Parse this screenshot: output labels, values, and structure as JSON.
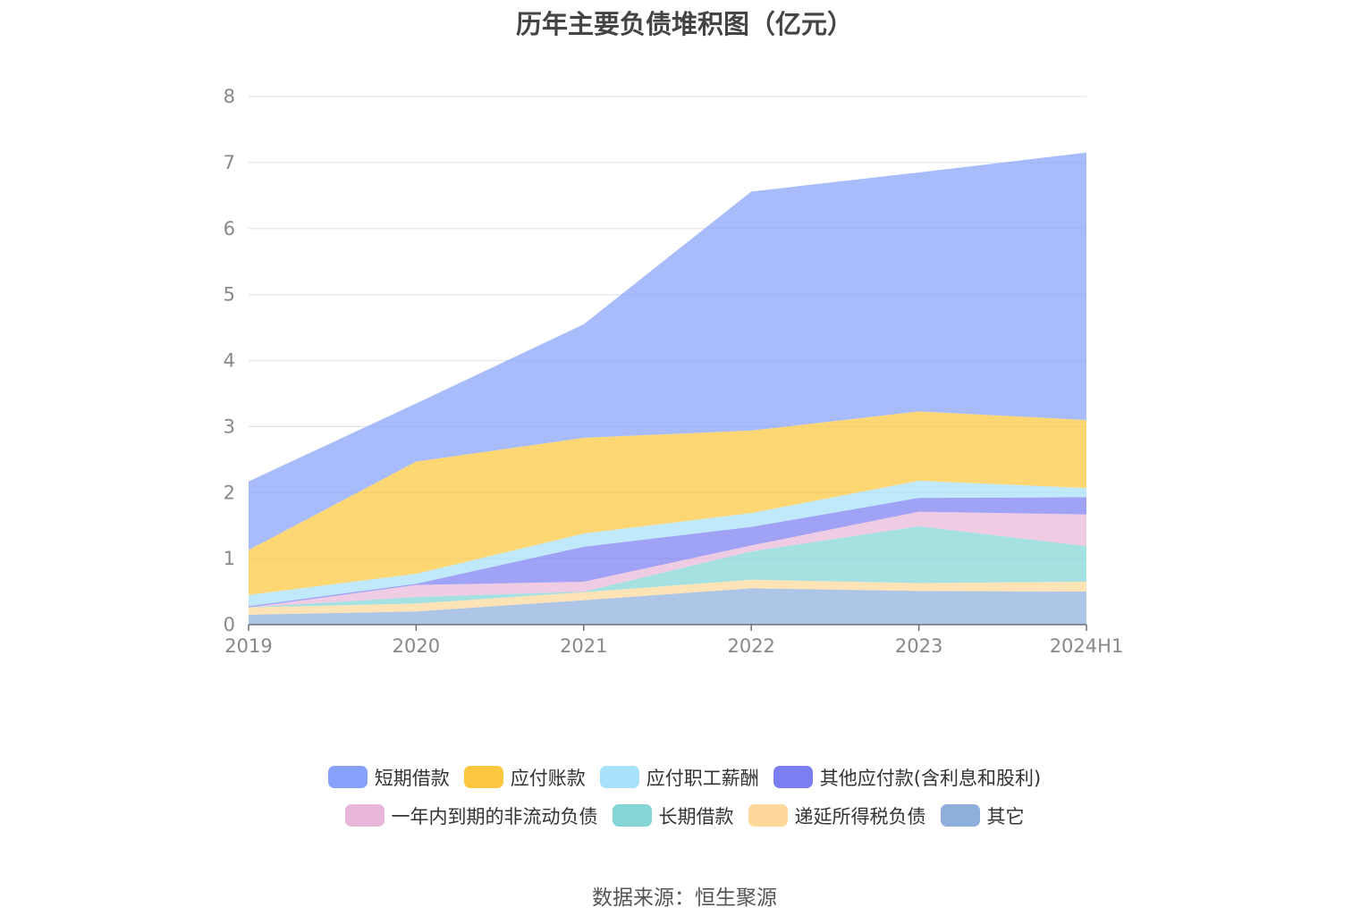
{
  "chart_data": {
    "type": "area",
    "stacked": true,
    "title": "历年主要负债堆积图（亿元）",
    "xlabel": "",
    "ylabel": "",
    "categories": [
      "2019",
      "2020",
      "2021",
      "2022",
      "2023",
      "2024H1"
    ],
    "ylim": [
      0,
      8
    ],
    "yticks": [
      0,
      1,
      2,
      3,
      4,
      5,
      6,
      7,
      8
    ],
    "grid": true,
    "legend_position": "bottom",
    "series": [
      {
        "name": "其它",
        "color": "#8eaedc",
        "values": [
          0.15,
          0.2,
          0.37,
          0.55,
          0.51,
          0.5
        ]
      },
      {
        "name": "递延所得税负债",
        "color": "#fdd89a",
        "values": [
          0.11,
          0.12,
          0.12,
          0.13,
          0.12,
          0.15
        ]
      },
      {
        "name": "长期借款",
        "color": "#84d5d5",
        "values": [
          0.0,
          0.1,
          0.01,
          0.43,
          0.86,
          0.54
        ]
      },
      {
        "name": "一年内到期的非流动负债",
        "color": "#e9b7d9",
        "values": [
          0.0,
          0.18,
          0.15,
          0.09,
          0.22,
          0.48
        ]
      },
      {
        "name": "其他应付款(含利息和股利)",
        "color": "#7b7ef1",
        "values": [
          0.02,
          0.02,
          0.53,
          0.28,
          0.21,
          0.26
        ]
      },
      {
        "name": "应付职工薪酬",
        "color": "#a8e1fa",
        "values": [
          0.17,
          0.15,
          0.2,
          0.21,
          0.26,
          0.14
        ]
      },
      {
        "name": "应付账款",
        "color": "#fdc840",
        "values": [
          0.68,
          1.7,
          1.45,
          1.25,
          1.05,
          1.03
        ]
      },
      {
        "name": "短期借款",
        "color": "#87a2fb",
        "values": [
          1.04,
          0.88,
          1.72,
          3.62,
          3.62,
          4.05
        ]
      }
    ],
    "legend_order": [
      "短期借款",
      "应付账款",
      "应付职工薪酬",
      "其他应付款(含利息和股利)",
      "一年内到期的非流动负债",
      "长期借款",
      "递延所得税负债",
      "其它"
    ]
  },
  "source_text": "数据来源：恒生聚源"
}
